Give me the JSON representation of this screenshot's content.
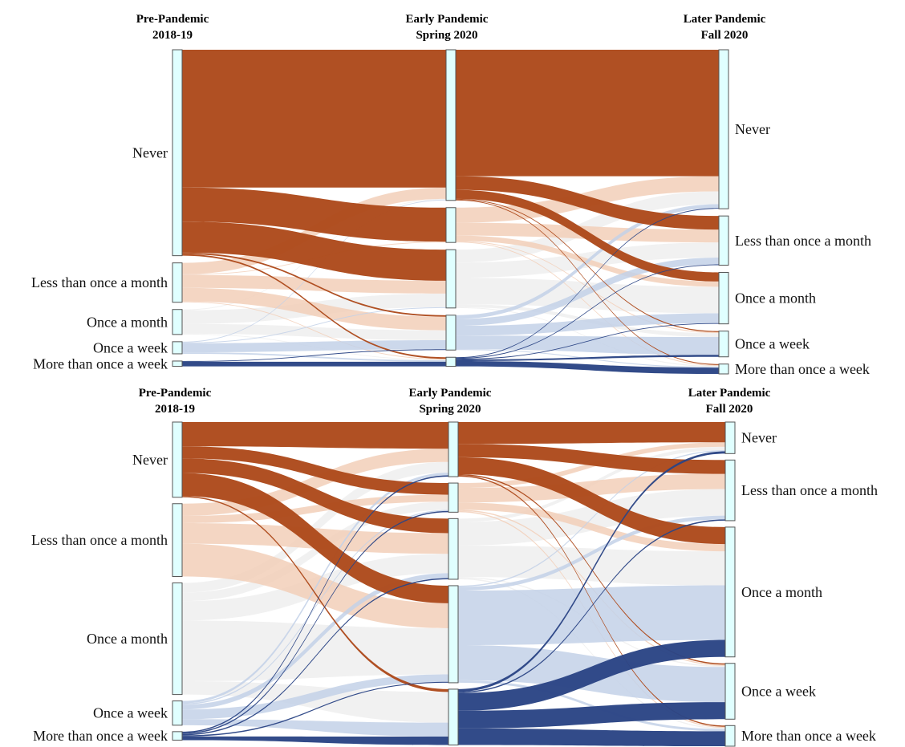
{
  "colors": {
    "never": "#ad4a1c",
    "less_than_once_a_month": "#f2cfb9",
    "once_a_month": "#f0f0f0",
    "once_a_week": "#c3d1e8",
    "more_than_once_a_week": "#2b4585",
    "node_fill": "#e0ffff"
  },
  "stage_titles": [
    {
      "line1": "Pre-Pandemic",
      "line2": "2018-19"
    },
    {
      "line1": "Early Pandemic",
      "line2": "Spring 2020"
    },
    {
      "line1": "Later Pandemic",
      "line2": "Fall 2020"
    }
  ],
  "categories": [
    "Never",
    "Less than once a month",
    "Once a month",
    "Once a week",
    "More than once a week"
  ],
  "panels": [
    {
      "name": "top",
      "stage_labels": [
        [
          "Never",
          "Less than once a month",
          "Once a month",
          "Once a week",
          "More than once a week"
        ],
        [],
        [
          "Never",
          "Less than once a month",
          "Once a month",
          "Once a week",
          "More than once a week"
        ]
      ],
      "node_values": [
        [
          272,
          52,
          33,
          16,
          7
        ],
        [
          199,
          46,
          77,
          46,
          12
        ],
        [
          210,
          65,
          68,
          34,
          13
        ]
      ],
      "flows_stage1_to_2": [
        [
          182,
          45,
          41,
          2,
          2
        ],
        [
          15,
          1,
          17,
          18,
          1
        ],
        [
          1,
          0,
          18,
          13,
          1
        ],
        [
          1,
          0,
          1,
          12,
          2
        ],
        [
          0,
          0,
          0,
          1,
          6
        ]
      ],
      "flows_stage2_to_3": [
        [
          167,
          18,
          12,
          1,
          1
        ],
        [
          20,
          17,
          7,
          1,
          1
        ],
        [
          17,
          20,
          35,
          4,
          1
        ],
        [
          5,
          9,
          13,
          18,
          1
        ],
        [
          1,
          1,
          1,
          2,
          7
        ]
      ]
    },
    {
      "name": "bottom",
      "stage_labels": [
        [
          "Never",
          "Less than once a month",
          "Once a month",
          "Once a week",
          "More than once a week"
        ],
        [],
        [
          "Never",
          "Less than once a month",
          "Once a month",
          "Once a week",
          "More than once a week"
        ]
      ],
      "node_values": [
        [
          62,
          60,
          92,
          20,
          7
        ],
        [
          45,
          24,
          50,
          80,
          46
        ],
        [
          26,
          50,
          107,
          46,
          17
        ]
      ],
      "flows_stage1_to_2": [
        [
          20,
          10,
          12,
          19,
          1
        ],
        [
          10,
          6,
          17,
          27,
          0
        ],
        [
          8,
          7,
          16,
          50,
          11
        ],
        [
          2,
          1,
          4,
          8,
          5
        ],
        [
          1,
          1,
          1,
          1,
          3
        ]
      ],
      "flows_stage2_to_3": [
        [
          18,
          11,
          14,
          1,
          1
        ],
        [
          4,
          12,
          6,
          1,
          1
        ],
        [
          3,
          21,
          28,
          1,
          1
        ],
        [
          1,
          3,
          45,
          29,
          2
        ],
        [
          2,
          1,
          14,
          14,
          13
        ]
      ]
    }
  ]
}
